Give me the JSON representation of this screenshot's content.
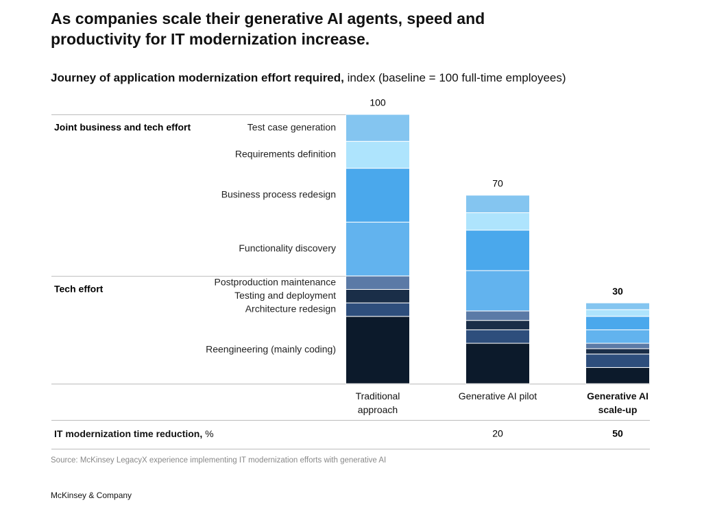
{
  "title": "As companies scale their generative AI agents, speed and productivity for IT modernization increase.",
  "chart_data": {
    "type": "stacked_bar",
    "subtitle_bold": "Journey of application modernization effort required,",
    "subtitle": "index (baseline = 100 full-time employees)",
    "categories": [
      "Traditional approach",
      "Generative AI pilot",
      "Generative AI scale-up"
    ],
    "highlight": 2,
    "groups": [
      "Joint business and tech effort",
      "Tech effort"
    ],
    "series": [
      {
        "name": "Reengineering (mainly coding)",
        "color": "#0c1a2b",
        "values": [
          25,
          15,
          6
        ]
      },
      {
        "name": "Architecture redesign",
        "color": "#2e4e7c",
        "values": [
          5,
          5,
          5
        ]
      },
      {
        "name": "Testing and deployment",
        "color": "#1a2e48",
        "values": [
          5,
          3.5,
          2
        ]
      },
      {
        "name": "Postproduction maintenance",
        "color": "#5b7aa6",
        "values": [
          5,
          3.5,
          2
        ]
      },
      {
        "name": "Functionality discovery",
        "color": "#62b3ee",
        "values": [
          20,
          15,
          5
        ]
      },
      {
        "name": "Business process redesign",
        "color": "#4aa8ec",
        "values": [
          20,
          15,
          5
        ]
      },
      {
        "name": "Requirements definition",
        "color": "#aee4fd",
        "values": [
          10,
          6.5,
          2.5
        ]
      },
      {
        "name": "Test case generation",
        "color": "#84c5f0",
        "values": [
          10,
          6.5,
          2.5
        ]
      }
    ],
    "totals": [
      100,
      70,
      30
    ],
    "time_reduction": {
      "label_bold": "IT modernization time reduction,",
      "label": "%",
      "values": [
        null,
        20,
        50
      ]
    }
  },
  "source": "Source: McKinsey LegacyX experience implementing IT modernization efforts with generative AI",
  "footer": "McKinsey & Company"
}
